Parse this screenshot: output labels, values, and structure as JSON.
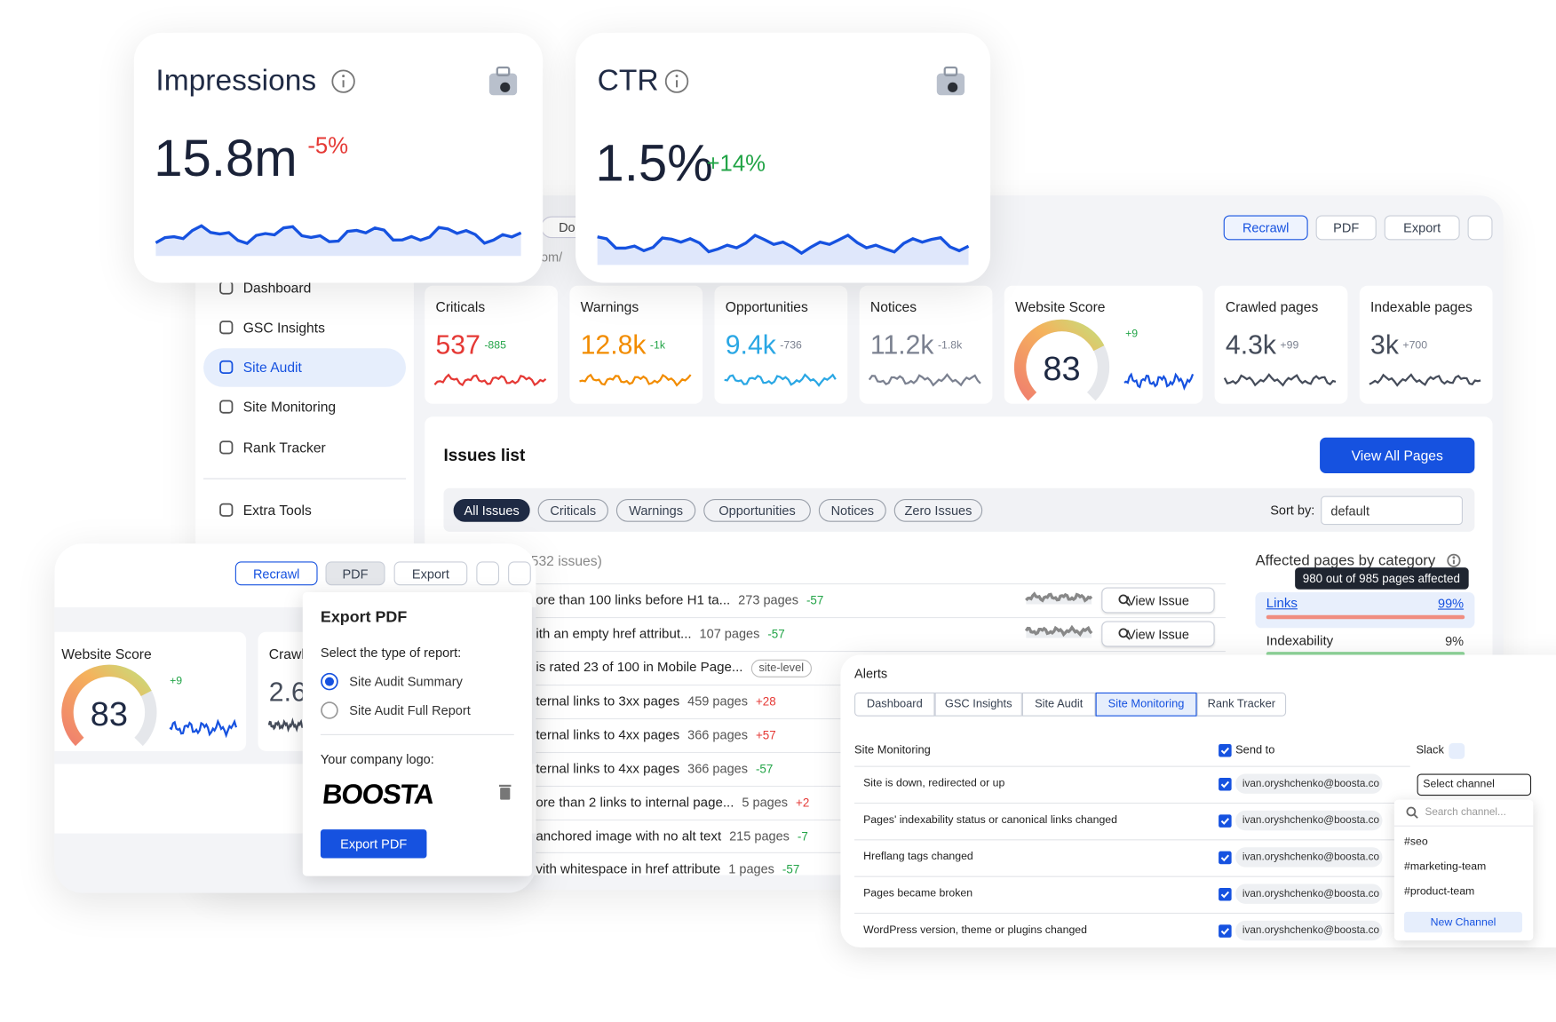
{
  "impressions": {
    "title": "Impressions",
    "value": "15.8m",
    "change": "-5%"
  },
  "ctr": {
    "title": "CTR",
    "value": "1.5%",
    "change": "+14%"
  },
  "breadcrumb": {
    "tab": "Do",
    "url": "om/"
  },
  "toolbar": {
    "recrawl": "Recrawl",
    "pdf": "PDF",
    "export": "Export"
  },
  "sidebar": {
    "items": [
      "Dashboard",
      "GSC Insights",
      "Site Audit",
      "Site Monitoring",
      "Rank Tracker",
      "Extra Tools"
    ]
  },
  "stats": [
    {
      "label": "Criticals",
      "value": "537",
      "change": "-885"
    },
    {
      "label": "Warnings",
      "value": "12.8k",
      "change": "-1k"
    },
    {
      "label": "Opportunities",
      "value": "9.4k",
      "change": "-736"
    },
    {
      "label": "Notices",
      "value": "11.2k",
      "change": "-1.8k"
    },
    {
      "label": "Website Score",
      "value": "83",
      "change": "+9"
    },
    {
      "label": "Crawled pages",
      "value": "4.3k",
      "change": "+99"
    },
    {
      "label": "Indexable pages",
      "value": "3k",
      "change": "+700"
    }
  ],
  "issues": {
    "title": "Issues list",
    "view_all": "View All Pages",
    "filters": [
      "All Issues",
      "Criticals",
      "Warnings",
      "Opportunities",
      "Notices",
      "Zero Issues"
    ],
    "sort_label": "Sort by:",
    "sort_value": "default",
    "count": "532 issues)",
    "rows": [
      {
        "text": "ore than 100 links before H1 ta...",
        "pages": "273 pages",
        "change": "-57",
        "action": "View Issue"
      },
      {
        "text": "ith an empty href attribut...",
        "pages": "107 pages",
        "change": "-57",
        "action": "View Issue"
      },
      {
        "text": "is rated 23 of 100 in Mobile Page...",
        "tag": "site-level"
      },
      {
        "text": "ternal links to 3xx pages",
        "pages": "459 pages",
        "change": "+28"
      },
      {
        "text": "ternal links to 4xx pages",
        "pages": "366 pages",
        "change": "+57"
      },
      {
        "text": "ternal links to 4xx pages",
        "pages": "366 pages",
        "change": "-57"
      },
      {
        "text": "ore than 2 links to internal page...",
        "pages": "5 pages",
        "change": "+2"
      },
      {
        "text": "anchored image with no alt text",
        "pages": "215 pages",
        "change": "-7"
      },
      {
        "text": "vith whitespace in href attribute",
        "pages": "1 pages",
        "change": "-57"
      }
    ]
  },
  "affected": {
    "title": "Affected pages by category",
    "tooltip": "980 out of 985 pages affected",
    "items": [
      {
        "name": "Links",
        "pct": "99%"
      },
      {
        "name": "Indexability",
        "pct": "9%"
      }
    ]
  },
  "alerts": {
    "title": "Alerts",
    "tabs": [
      "Dashboard",
      "GSC Insights",
      "Site Audit",
      "Site Monitoring",
      "Rank Tracker"
    ],
    "header": {
      "section": "Site Monitoring",
      "send_to": "Send to",
      "slack": "Slack"
    },
    "rows": [
      {
        "text": "Site is down, redirected or up",
        "email": "ivan.oryshchenko@boosta.co"
      },
      {
        "text": "Pages' indexability status or canonical links changed",
        "email": "ivan.oryshchenko@boosta.co"
      },
      {
        "text": "Hreflang tags changed",
        "email": "ivan.oryshchenko@boosta.co"
      },
      {
        "text": "Pages became broken",
        "email": "ivan.oryshchenko@boosta.co"
      },
      {
        "text": "WordPress version, theme or plugins changed",
        "email": "ivan.oryshchenko@boosta.co"
      }
    ],
    "select": "Select channel",
    "search": "Search channel...",
    "channels": [
      "#seo",
      "#marketing-team",
      "#product-team"
    ],
    "new_channel": "New Channel"
  },
  "mini": {
    "toolbar": {
      "recrawl": "Recrawl",
      "pdf": "PDF",
      "export": "Export"
    },
    "score_label": "Website Score",
    "score": "83",
    "change": "+9",
    "crawl_label": "Crawl",
    "crawl_value": "2.6"
  },
  "export_pdf": {
    "title": "Export PDF",
    "prompt": "Select the type of report:",
    "options": [
      "Site Audit Summary",
      "Site Audit Full Report"
    ],
    "logo_label": "Your company logo:",
    "logo": "BOOSTA",
    "button": "Export PDF"
  }
}
